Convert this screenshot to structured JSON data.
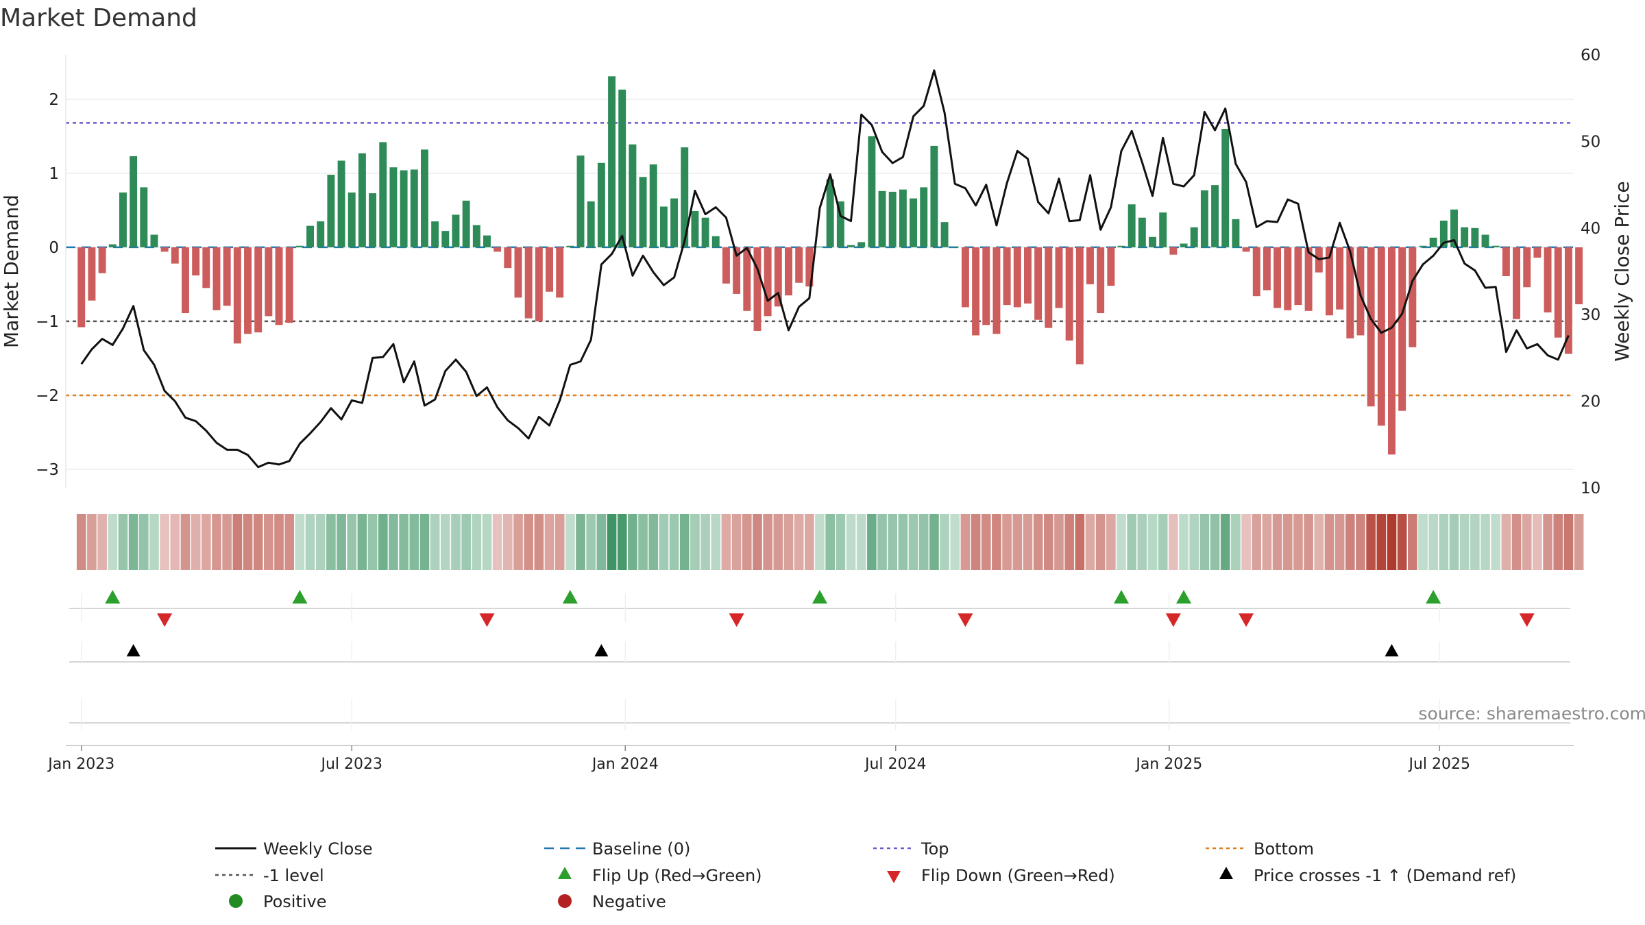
{
  "colors": {
    "pos": "#2e8b57",
    "neg": "#cd5c5c",
    "close": "#111111",
    "baseline": "#1f77b4",
    "top": "#6a5acd",
    "minus1": "#555555",
    "bottom": "#e07b1a",
    "flip_up": "#2ca02c",
    "flip_down": "#d62728",
    "cross": "#000000",
    "dot_pos": "#228b22",
    "dot_neg": "#b22222"
  },
  "chart_data": {
    "type": "bar",
    "title": "Market Demand",
    "ylabel": "Market Demand",
    "y2label": "Weekly Close Price",
    "source_text": "source: sharemaestro.com",
    "ylim": [
      -3.25,
      2.6
    ],
    "y2lim": [
      10,
      60
    ],
    "yticks": [
      2,
      1,
      0,
      -1,
      -2,
      -3
    ],
    "ytick_labels": [
      "2",
      "1",
      "0",
      "−1",
      "−2",
      "−3"
    ],
    "y2ticks": [
      60,
      50,
      40,
      30,
      20,
      10
    ],
    "y2tick_labels": [
      "60",
      "50",
      "40",
      "30",
      "20",
      "10"
    ],
    "xlim": [
      -1.5,
      143.5
    ],
    "xticks": [
      {
        "label": "Jan 2023",
        "week": 0
      },
      {
        "label": "Jul 2023",
        "week": 26
      },
      {
        "label": "Jan 2024",
        "week": 52.3
      },
      {
        "label": "Jul 2024",
        "week": 78.3
      },
      {
        "label": "Jan 2025",
        "week": 104.6
      },
      {
        "label": "Jul 2025",
        "week": 130.6
      }
    ],
    "reference_lines": {
      "top": 1.68,
      "minus_one": -1.0,
      "bottom": -2.0,
      "baseline": 0
    },
    "series": [
      {
        "name": "Market Demand",
        "values": [
          -1.08,
          -0.72,
          -0.35,
          0.04,
          0.74,
          1.23,
          0.81,
          0.17,
          -0.06,
          -0.22,
          -0.89,
          -0.38,
          -0.55,
          -0.85,
          -0.79,
          -1.3,
          -1.17,
          -1.15,
          -0.93,
          -1.05,
          -1.02,
          0.02,
          0.29,
          0.35,
          0.98,
          1.17,
          0.74,
          1.27,
          0.73,
          1.42,
          1.08,
          1.04,
          1.05,
          1.32,
          0.35,
          0.22,
          0.44,
          0.63,
          0.3,
          0.16,
          -0.06,
          -0.28,
          -0.68,
          -0.96,
          -1.0,
          -0.6,
          -0.68,
          0.02,
          1.24,
          0.62,
          1.14,
          2.31,
          2.13,
          1.39,
          0.95,
          1.12,
          0.55,
          0.66,
          1.35,
          0.49,
          0.4,
          0.15,
          -0.49,
          -0.63,
          -0.86,
          -1.13,
          -0.93,
          -0.8,
          -0.65,
          -0.48,
          -0.53,
          0.01,
          0.92,
          0.62,
          0.03,
          0.07,
          1.5,
          0.76,
          0.75,
          0.78,
          0.66,
          0.81,
          1.37,
          0.34,
          0.01,
          -0.81,
          -1.19,
          -1.05,
          -1.17,
          -0.78,
          -0.81,
          -0.76,
          -0.98,
          -1.09,
          -0.82,
          -1.26,
          -1.58,
          -0.5,
          -0.89,
          -0.52,
          0.02,
          0.58,
          0.4,
          0.14,
          0.47,
          -0.1,
          0.05,
          0.27,
          0.77,
          0.84,
          1.6,
          0.38,
          -0.06,
          -0.66,
          -0.58,
          -0.82,
          -0.85,
          -0.78,
          -0.86,
          -0.34,
          -0.92,
          -0.84,
          -1.23,
          -1.19,
          -2.15,
          -2.41,
          -2.8,
          -2.21,
          -1.35,
          0.02,
          0.13,
          0.36,
          0.51,
          0.27,
          0.26,
          0.17,
          0.02,
          -0.39,
          -0.97,
          -0.54,
          -0.14,
          -0.88,
          -1.22,
          -1.44,
          -0.77
        ]
      },
      {
        "name": "Weekly Close",
        "axis": "right",
        "values": [
          24.3,
          26.0,
          27.2,
          26.5,
          28.4,
          31.0,
          25.9,
          24.2,
          21.2,
          20.0,
          18.1,
          17.7,
          16.6,
          15.2,
          14.4,
          14.4,
          13.8,
          12.4,
          12.9,
          12.7,
          13.1,
          15.1,
          16.3,
          17.6,
          19.2,
          17.9,
          20.1,
          19.8,
          25.0,
          25.1,
          26.6,
          22.2,
          24.6,
          19.5,
          20.2,
          23.5,
          24.8,
          23.4,
          20.6,
          21.6,
          19.3,
          17.8,
          16.9,
          15.7,
          18.2,
          17.2,
          20.1,
          24.2,
          24.6,
          27.1,
          35.8,
          37.0,
          39.1,
          34.5,
          36.8,
          34.9,
          33.4,
          34.3,
          38.5,
          44.3,
          41.6,
          42.4,
          41.2,
          36.8,
          37.7,
          35.3,
          31.6,
          32.5,
          28.2,
          30.9,
          31.9,
          42.3,
          46.2,
          41.4,
          40.8,
          53.1,
          51.9,
          48.8,
          47.5,
          48.2,
          52.9,
          54.1,
          58.2,
          53.3,
          45.1,
          44.6,
          42.6,
          45.0,
          40.3,
          45.2,
          48.9,
          48.0,
          43.0,
          41.7,
          45.7,
          40.8,
          40.9,
          46.1,
          39.8,
          42.4,
          48.9,
          51.2,
          47.6,
          43.7,
          50.4,
          45.1,
          44.8,
          46.1,
          53.4,
          51.3,
          53.8,
          47.4,
          45.3,
          40.1,
          40.8,
          40.7,
          43.3,
          42.8,
          37.2,
          36.4,
          36.6,
          40.6,
          37.3,
          32.2,
          29.5,
          27.9,
          28.5,
          30.1,
          33.9,
          35.8,
          36.8,
          38.3,
          38.6,
          35.9,
          35.1,
          33.1,
          33.2,
          25.7,
          28.2,
          26.1,
          26.6,
          25.3,
          24.8,
          27.6
        ]
      }
    ],
    "heat_strip_note": "color of each bar mirrors Market Demand value",
    "flip_up_weeks": [
      3,
      21,
      47,
      71,
      100,
      106,
      130
    ],
    "flip_down_weeks": [
      8,
      39,
      63,
      85,
      105,
      112,
      139
    ],
    "price_cross_weeks": [
      5,
      50,
      126
    ],
    "legend": [
      {
        "key": "close",
        "label": "Weekly Close"
      },
      {
        "key": "baseline",
        "label": "Baseline (0)"
      },
      {
        "key": "top",
        "label": "Top"
      },
      {
        "key": "bottom",
        "label": "Bottom"
      },
      {
        "key": "minus1",
        "label": "-1 level"
      },
      {
        "key": "flip_up",
        "label": "Flip Up (Red→Green)"
      },
      {
        "key": "flip_down",
        "label": "Flip Down (Green→Red)"
      },
      {
        "key": "cross",
        "label": "Price crosses -1 ↑ (Demand ref)"
      },
      {
        "key": "dot_pos",
        "label": "Positive"
      },
      {
        "key": "dot_neg",
        "label": "Negative"
      }
    ]
  }
}
